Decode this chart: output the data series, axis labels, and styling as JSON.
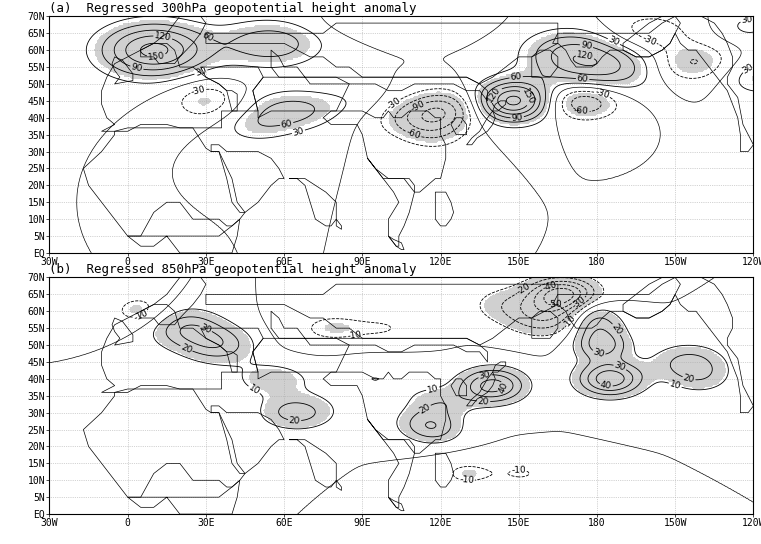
{
  "title_a": "(a)  Regressed 300hPa geopotential height anomaly",
  "title_b": "(b)  Regressed 850hPa geopotential height anomaly",
  "figsize": [
    7.61,
    5.44
  ],
  "dpi": 100,
  "lon_min": -30,
  "lon_max": 240,
  "lat_min": 0,
  "lat_max": 70,
  "xticks": [
    -30,
    0,
    30,
    60,
    90,
    120,
    150,
    180,
    210,
    240
  ],
  "xtick_labels": [
    "30W",
    "0",
    "30E",
    "60E",
    "90E",
    "120E",
    "150E",
    "180",
    "150W",
    "120W"
  ],
  "yticks": [
    0,
    5,
    10,
    15,
    20,
    25,
    30,
    35,
    40,
    45,
    50,
    55,
    60,
    65,
    70
  ],
  "ytick_labels": [
    "EQ",
    "5N",
    "10N",
    "15N",
    "20N",
    "25N",
    "30N",
    "35N",
    "40N",
    "45N",
    "50N",
    "55N",
    "60N",
    "65N",
    "70N"
  ],
  "sig_color": "#aaaaaa",
  "linewidth": 0.6,
  "clabel_fontsize": 6.5,
  "grid_color": "#aaaaaa",
  "grid_linestyle": ":",
  "grid_linewidth": 0.5,
  "land_edge_color": "black",
  "land_edge_width": 0.5
}
